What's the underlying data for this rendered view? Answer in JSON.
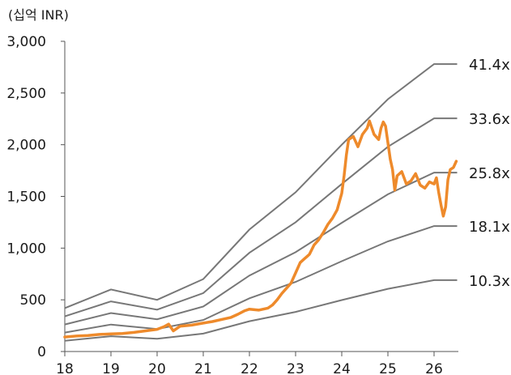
{
  "chart_data": {
    "type": "line",
    "unit_label": "(십억 INR)",
    "xlabel": "",
    "ylabel": "",
    "xlim": [
      18,
      26.5
    ],
    "ylim": [
      0,
      3000
    ],
    "x_ticks": [
      18,
      19,
      20,
      21,
      22,
      23,
      24,
      25,
      26
    ],
    "x_tick_labels": [
      "18",
      "19",
      "20",
      "21",
      "22",
      "23",
      "24",
      "25",
      "26"
    ],
    "y_ticks": [
      0,
      500,
      1000,
      1500,
      2000,
      2500,
      3000
    ],
    "y_tick_labels": [
      "0",
      "500",
      "1,000",
      "1,500",
      "2,000",
      "2,500",
      "3,000"
    ],
    "grid": false,
    "band_color": "#777777",
    "price_color": "#ee8a2b",
    "bands": [
      {
        "name": "41.4x",
        "points": [
          [
            18,
            420
          ],
          [
            19,
            600
          ],
          [
            20,
            500
          ],
          [
            21,
            700
          ],
          [
            22,
            1180
          ],
          [
            23,
            1540
          ],
          [
            24,
            2000
          ],
          [
            25,
            2440
          ],
          [
            26,
            2780
          ],
          [
            26.5,
            2780
          ]
        ]
      },
      {
        "name": "33.6x",
        "points": [
          [
            18,
            340
          ],
          [
            19,
            485
          ],
          [
            20,
            405
          ],
          [
            21,
            565
          ],
          [
            22,
            955
          ],
          [
            23,
            1250
          ],
          [
            24,
            1620
          ],
          [
            25,
            1980
          ],
          [
            26,
            2255
          ],
          [
            26.5,
            2255
          ]
        ]
      },
      {
        "name": "25.8x",
        "points": [
          [
            18,
            262
          ],
          [
            19,
            372
          ],
          [
            20,
            312
          ],
          [
            21,
            435
          ],
          [
            22,
            735
          ],
          [
            23,
            960
          ],
          [
            24,
            1245
          ],
          [
            25,
            1520
          ],
          [
            26,
            1730
          ],
          [
            26.5,
            1730
          ]
        ]
      },
      {
        "name": "18.1x",
        "points": [
          [
            18,
            183
          ],
          [
            19,
            261
          ],
          [
            20,
            218
          ],
          [
            21,
            305
          ],
          [
            22,
            515
          ],
          [
            23,
            673
          ],
          [
            24,
            873
          ],
          [
            25,
            1065
          ],
          [
            26,
            1213
          ],
          [
            26.5,
            1213
          ]
        ]
      },
      {
        "name": "10.3x",
        "points": [
          [
            18,
            104
          ],
          [
            19,
            148
          ],
          [
            20,
            124
          ],
          [
            21,
            173
          ],
          [
            22,
            293
          ],
          [
            23,
            383
          ],
          [
            24,
            497
          ],
          [
            25,
            606
          ],
          [
            26,
            690
          ],
          [
            26.5,
            690
          ]
        ]
      }
    ],
    "price": {
      "name": "",
      "points": [
        [
          18.0,
          140
        ],
        [
          18.25,
          150
        ],
        [
          18.5,
          155
        ],
        [
          18.75,
          165
        ],
        [
          19.0,
          170
        ],
        [
          19.25,
          175
        ],
        [
          19.5,
          185
        ],
        [
          19.75,
          200
        ],
        [
          20.0,
          215
        ],
        [
          20.15,
          240
        ],
        [
          20.25,
          265
        ],
        [
          20.35,
          200
        ],
        [
          20.5,
          245
        ],
        [
          20.75,
          255
        ],
        [
          21.0,
          275
        ],
        [
          21.2,
          290
        ],
        [
          21.4,
          310
        ],
        [
          21.6,
          330
        ],
        [
          21.75,
          360
        ],
        [
          21.9,
          395
        ],
        [
          22.0,
          410
        ],
        [
          22.2,
          400
        ],
        [
          22.4,
          420
        ],
        [
          22.5,
          450
        ],
        [
          22.6,
          500
        ],
        [
          22.7,
          560
        ],
        [
          22.8,
          610
        ],
        [
          22.9,
          660
        ],
        [
          23.0,
          760
        ],
        [
          23.1,
          860
        ],
        [
          23.2,
          900
        ],
        [
          23.3,
          940
        ],
        [
          23.4,
          1030
        ],
        [
          23.5,
          1080
        ],
        [
          23.6,
          1150
        ],
        [
          23.7,
          1230
        ],
        [
          23.8,
          1290
        ],
        [
          23.9,
          1370
        ],
        [
          24.0,
          1530
        ],
        [
          24.05,
          1700
        ],
        [
          24.1,
          1900
        ],
        [
          24.15,
          2050
        ],
        [
          24.25,
          2080
        ],
        [
          24.35,
          1980
        ],
        [
          24.45,
          2100
        ],
        [
          24.55,
          2160
        ],
        [
          24.6,
          2230
        ],
        [
          24.7,
          2100
        ],
        [
          24.8,
          2050
        ],
        [
          24.85,
          2160
        ],
        [
          24.9,
          2220
        ],
        [
          24.95,
          2180
        ],
        [
          25.0,
          2020
        ],
        [
          25.05,
          1860
        ],
        [
          25.1,
          1760
        ],
        [
          25.15,
          1560
        ],
        [
          25.2,
          1700
        ],
        [
          25.3,
          1740
        ],
        [
          25.4,
          1620
        ],
        [
          25.5,
          1650
        ],
        [
          25.6,
          1720
        ],
        [
          25.7,
          1610
        ],
        [
          25.8,
          1580
        ],
        [
          25.9,
          1640
        ],
        [
          26.0,
          1620
        ],
        [
          26.05,
          1680
        ],
        [
          26.1,
          1540
        ],
        [
          26.15,
          1420
        ],
        [
          26.2,
          1310
        ],
        [
          26.25,
          1400
        ],
        [
          26.3,
          1660
        ],
        [
          26.35,
          1760
        ],
        [
          26.42,
          1780
        ],
        [
          26.48,
          1840
        ]
      ]
    }
  }
}
